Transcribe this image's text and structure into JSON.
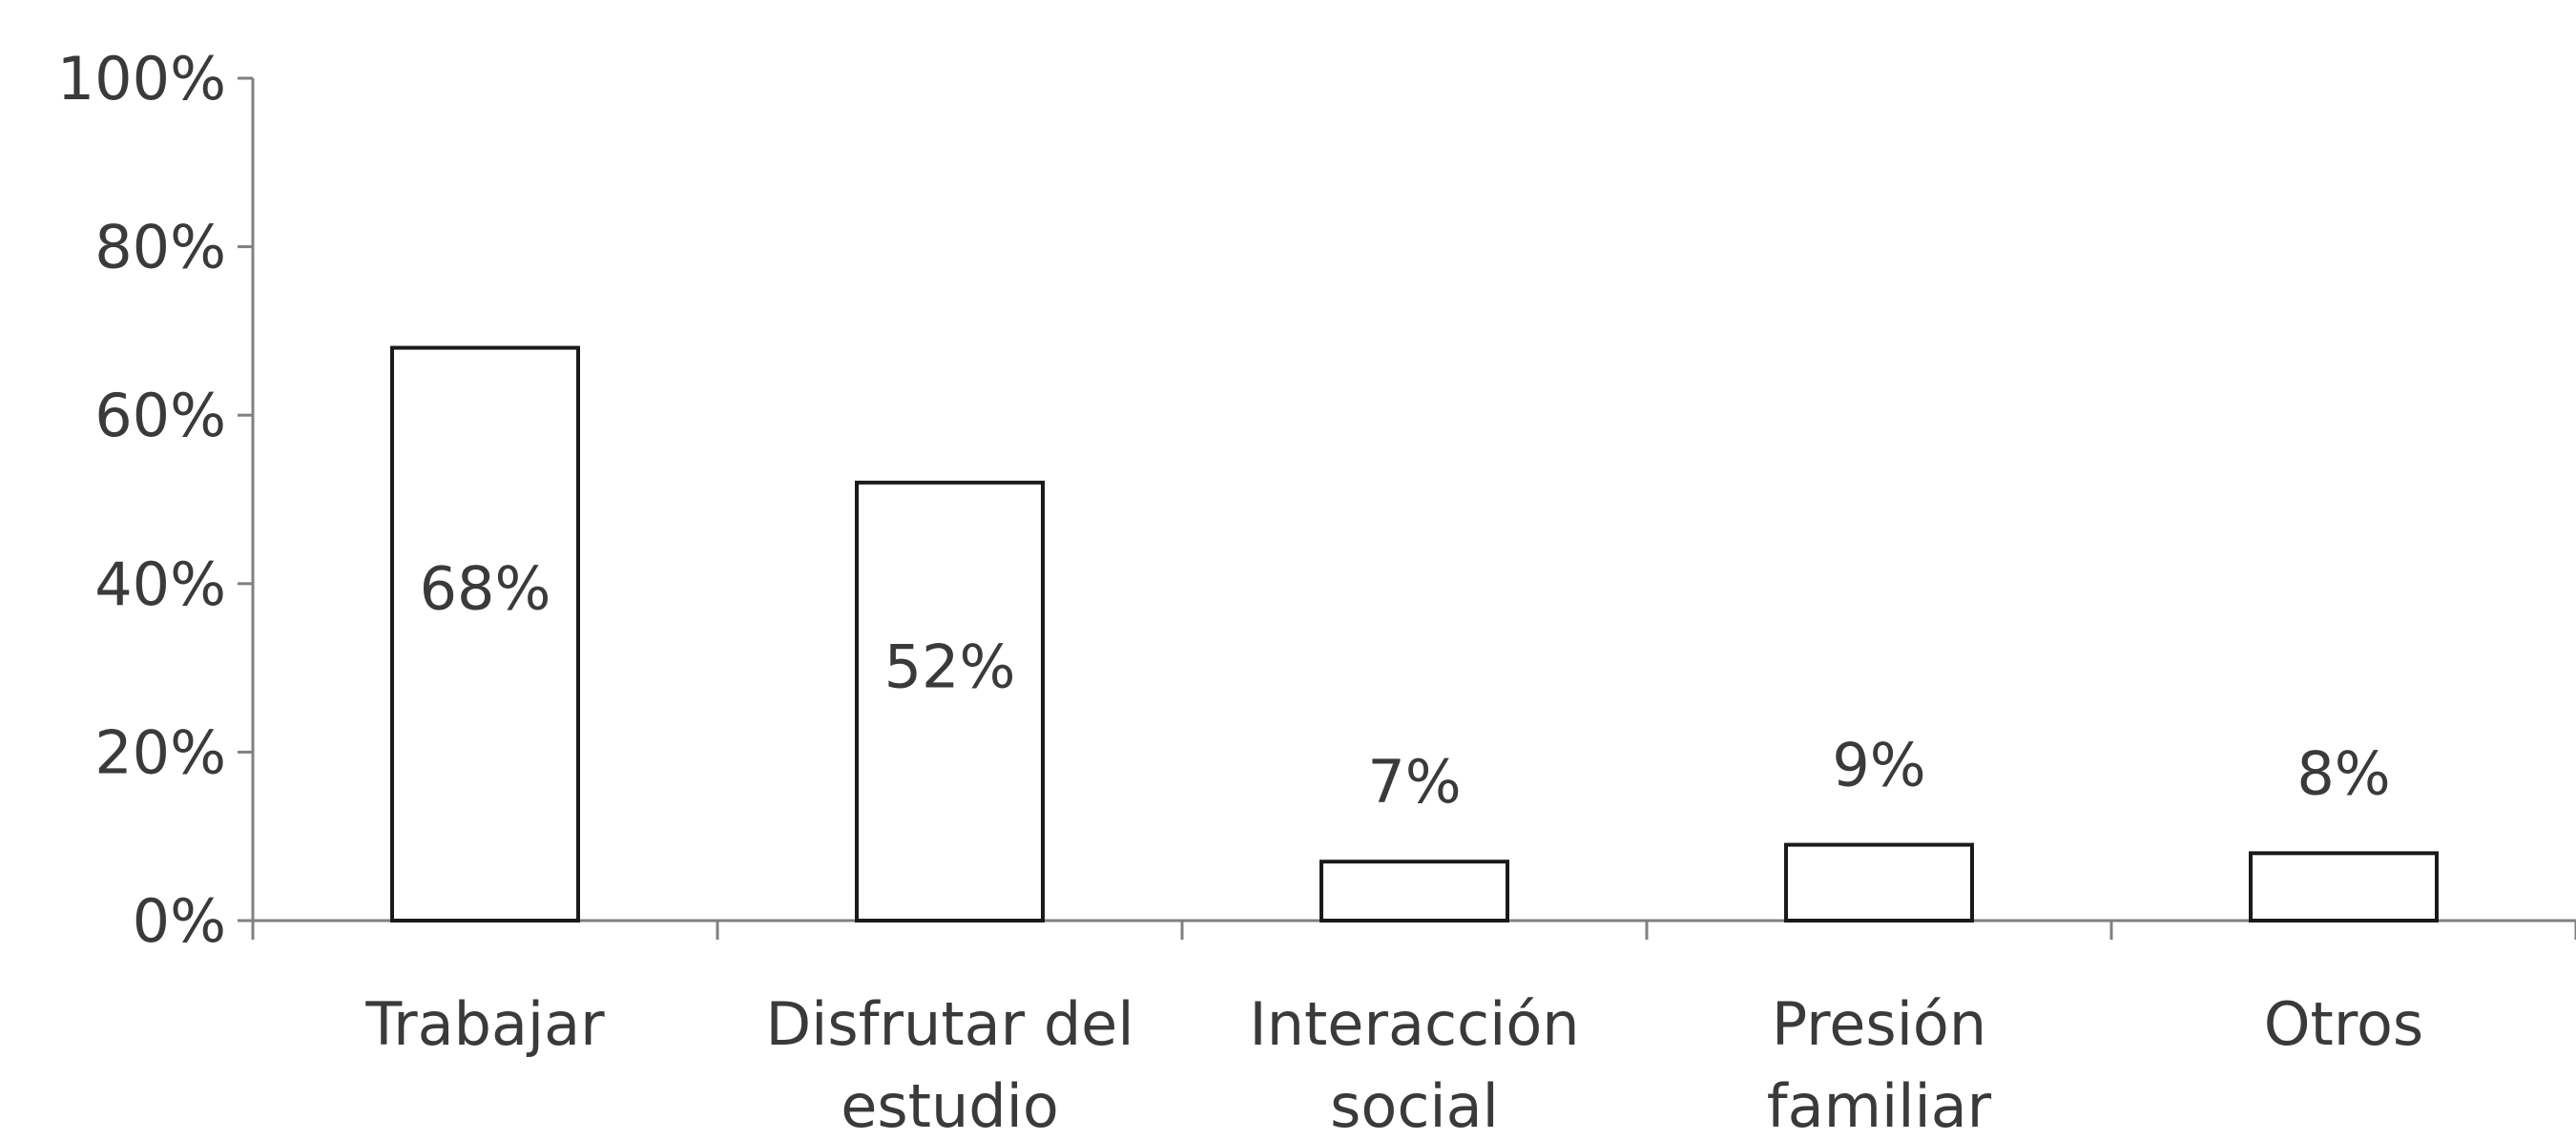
{
  "chart_data": {
    "type": "bar",
    "categories": [
      [
        "Trabajar"
      ],
      [
        "Disfrutar del",
        "estudio"
      ],
      [
        "Interacción",
        "social"
      ],
      [
        "Presión",
        "familiar"
      ],
      [
        "Otros"
      ]
    ],
    "values": [
      68,
      52,
      7,
      9,
      8
    ],
    "data_labels": [
      "68%",
      "52%",
      "7%",
      "9%",
      "8%"
    ],
    "data_label_position": [
      "inside",
      "inside",
      "outside",
      "outside",
      "outside"
    ],
    "ylim": [
      0,
      100
    ],
    "y_ticks": [
      0,
      20,
      40,
      60,
      80,
      100
    ],
    "y_tick_labels": [
      "0%",
      "20%",
      "40%",
      "60%",
      "80%",
      "100%"
    ],
    "grid": false,
    "legend": "none",
    "bar_fill": "#ffffff",
    "bar_stroke": "#1a1a1a",
    "axis_color": "#808080",
    "text_color": "#3a3a3a"
  }
}
